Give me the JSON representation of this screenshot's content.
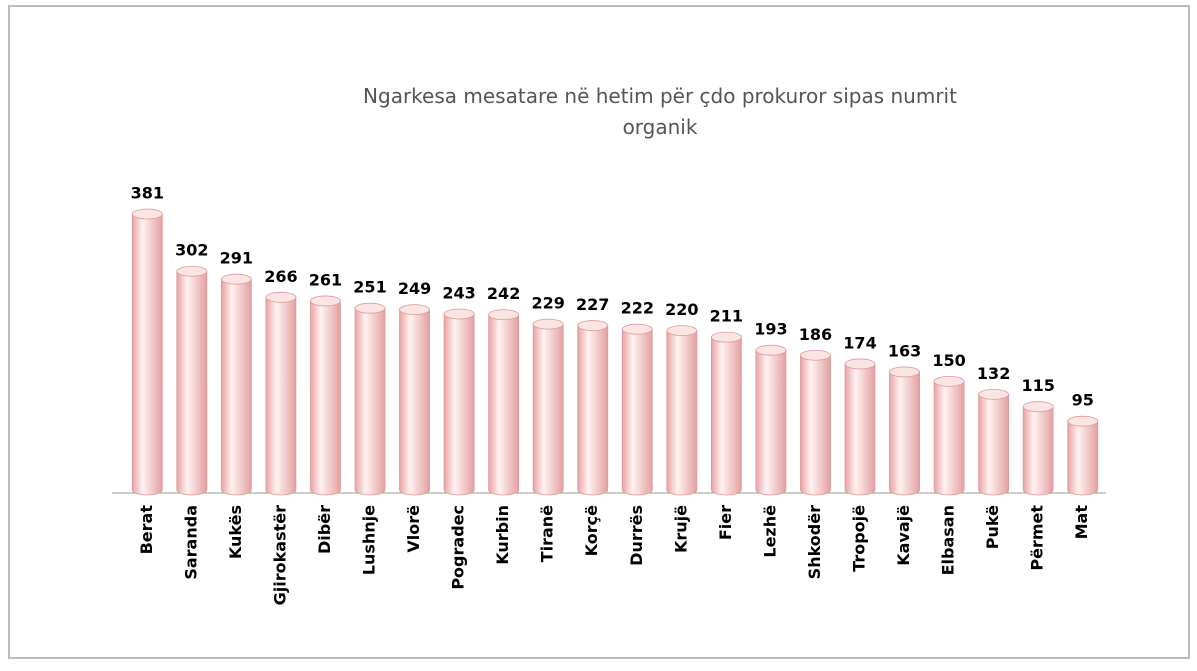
{
  "chart_data": {
    "type": "bar",
    "title": "Ngarkesa mesatare në hetim për çdo prokuror sipas numrit organik",
    "categories": [
      "Berat",
      "Saranda",
      "Kukës",
      "Gjirokastër",
      "Dibër",
      "Lushnje",
      "Vlorë",
      "Pogradec",
      "Kurbin",
      "Tiranë",
      "Korçë",
      "Durrës",
      "Krujë",
      "Fier",
      "Lezhë",
      "Shkodër",
      "Tropojë",
      "Kavajë",
      "Elbasan",
      "Pukë",
      "Përmet",
      "Mat"
    ],
    "values": [
      381,
      302,
      291,
      266,
      261,
      251,
      249,
      243,
      242,
      229,
      227,
      222,
      220,
      211,
      193,
      186,
      174,
      163,
      150,
      132,
      115,
      95
    ],
    "color": "#f2b3b3"
  }
}
